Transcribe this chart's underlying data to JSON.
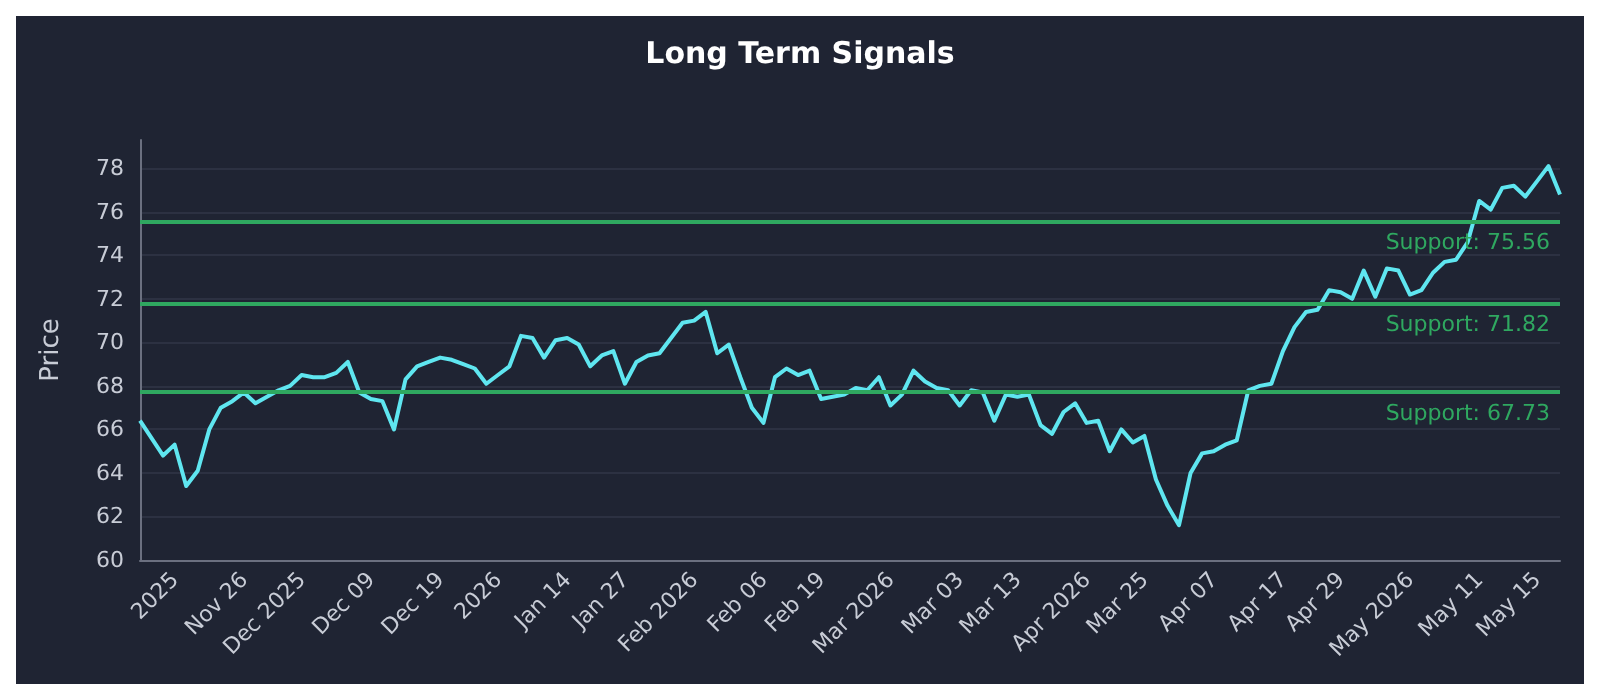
{
  "chart_data": {
    "type": "line",
    "title": "Long Term Signals",
    "ylabel": "Price",
    "categories": [
      null,
      null,
      null,
      "2025",
      null,
      null,
      null,
      null,
      null,
      "Nov 26",
      null,
      null,
      null,
      null,
      "Dec 2025",
      null,
      null,
      null,
      null,
      null,
      "Dec 09",
      null,
      null,
      null,
      null,
      null,
      "Dec 19",
      null,
      null,
      null,
      null,
      "2026",
      null,
      null,
      null,
      null,
      null,
      "Jan 14",
      null,
      null,
      null,
      null,
      "Jan 27",
      null,
      null,
      null,
      null,
      null,
      "Feb 2026",
      null,
      null,
      null,
      null,
      null,
      "Feb 06",
      null,
      null,
      null,
      null,
      "Feb 19",
      null,
      null,
      null,
      null,
      null,
      "Mar 2026",
      null,
      null,
      null,
      null,
      null,
      "Mar 03",
      null,
      null,
      null,
      null,
      "Mar 13",
      null,
      null,
      null,
      null,
      null,
      "Apr 2026",
      null,
      null,
      null,
      null,
      "Mar 25",
      null,
      null,
      null,
      null,
      null,
      "Apr 07",
      null,
      null,
      null,
      null,
      null,
      "Apr 17",
      null,
      null,
      null,
      null,
      "Apr 29",
      null,
      null,
      null,
      null,
      null,
      "May 2026",
      null,
      null,
      null,
      null,
      null,
      "May 11",
      null,
      null,
      null,
      null,
      "May 15",
      null,
      null
    ],
    "series": [
      {
        "color": "#5fe6f0",
        "values": [
          66.4,
          65.6,
          64.8,
          65.3,
          63.4,
          64.1,
          66.0,
          67.0,
          67.3,
          67.7,
          67.2,
          67.5,
          67.8,
          68.0,
          68.5,
          68.4,
          68.4,
          68.6,
          69.1,
          67.7,
          67.4,
          67.3,
          66.0,
          68.3,
          68.9,
          69.1,
          69.3,
          69.2,
          69.0,
          68.8,
          68.1,
          68.5,
          68.9,
          70.3,
          70.2,
          69.3,
          70.1,
          70.2,
          69.9,
          68.9,
          69.4,
          69.6,
          68.1,
          69.1,
          69.4,
          69.5,
          70.2,
          70.9,
          71.0,
          71.4,
          69.5,
          69.9,
          68.4,
          67.0,
          66.3,
          68.4,
          68.8,
          68.5,
          68.7,
          67.4,
          67.5,
          67.6,
          67.9,
          67.8,
          68.4,
          67.1,
          67.6,
          68.7,
          68.2,
          67.9,
          67.8,
          67.1,
          67.8,
          67.7,
          66.4,
          67.6,
          67.5,
          67.6,
          66.2,
          65.8,
          66.8,
          67.2,
          66.3,
          66.4,
          65.0,
          66.0,
          65.4,
          65.7,
          63.7,
          62.5,
          61.6,
          64.0,
          64.9,
          65.0,
          65.3,
          65.5,
          67.8,
          68.0,
          68.1,
          69.6,
          70.7,
          71.4,
          71.5,
          72.4,
          72.3,
          72.0,
          73.3,
          72.1,
          73.4,
          73.3,
          72.2,
          72.4,
          73.2,
          73.7,
          73.8,
          74.6,
          76.5,
          76.1,
          77.1,
          77.2,
          76.7,
          77.4,
          78.1,
          76.8
        ]
      }
    ],
    "ylim": [
      60,
      79.3
    ],
    "yticks": [
      60,
      62,
      64,
      66,
      68,
      70,
      72,
      74,
      76,
      78
    ],
    "grid": "y",
    "marker": "none",
    "line_style": "solid",
    "ref_lines": [
      {
        "axis": "y",
        "value": 75.56,
        "label": "Support: 75.56",
        "color": "#2fa860"
      },
      {
        "axis": "y",
        "value": 71.82,
        "label": "Support: 71.82",
        "color": "#2fa860"
      },
      {
        "axis": "y",
        "value": 67.73,
        "label": "Support: 67.73",
        "color": "#2fa860"
      }
    ]
  }
}
